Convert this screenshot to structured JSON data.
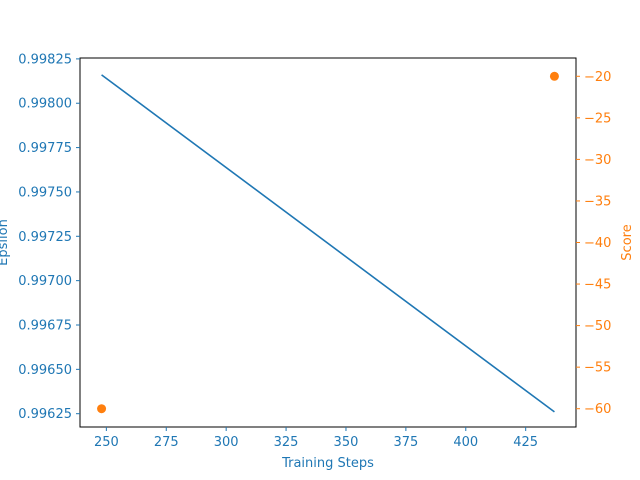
{
  "chart_data": {
    "type": "line",
    "title": "",
    "xlabel": "Training Steps",
    "ylabel": "Epsilon",
    "y2label": "Score",
    "xlim": [
      239,
      446
    ],
    "ylim": [
      0.996175,
      0.998255
    ],
    "y2lim": [
      -62.2,
      -17.8
    ],
    "x_ticks": [
      250,
      275,
      300,
      325,
      350,
      375,
      400,
      425
    ],
    "x_tick_labels": [
      "250",
      "275",
      "300",
      "325",
      "350",
      "375",
      "400",
      "425"
    ],
    "y_ticks": [
      0.99625,
      0.9965,
      0.99675,
      0.997,
      0.99725,
      0.9975,
      0.99775,
      0.998,
      0.99825
    ],
    "y_tick_labels": [
      "0.99625",
      "0.99650",
      "0.99675",
      "0.99700",
      "0.99725",
      "0.99750",
      "0.99775",
      "0.99800",
      "0.99825"
    ],
    "y2_ticks": [
      -60,
      -55,
      -50,
      -45,
      -40,
      -35,
      -30,
      -25,
      -20
    ],
    "y2_tick_labels": [
      "−60",
      "−55",
      "−50",
      "−45",
      "−40",
      "−35",
      "−30",
      "−25",
      "−20"
    ],
    "series": [
      {
        "name": "Epsilon",
        "type": "line",
        "axis": "left",
        "color": "#1f77b4",
        "x": [
          248,
          437
        ],
        "y": [
          0.99816,
          0.99626
        ]
      },
      {
        "name": "Score",
        "type": "scatter",
        "axis": "right",
        "color": "#ff7f0e",
        "x": [
          248,
          437
        ],
        "y": [
          -60,
          -20
        ]
      }
    ]
  }
}
